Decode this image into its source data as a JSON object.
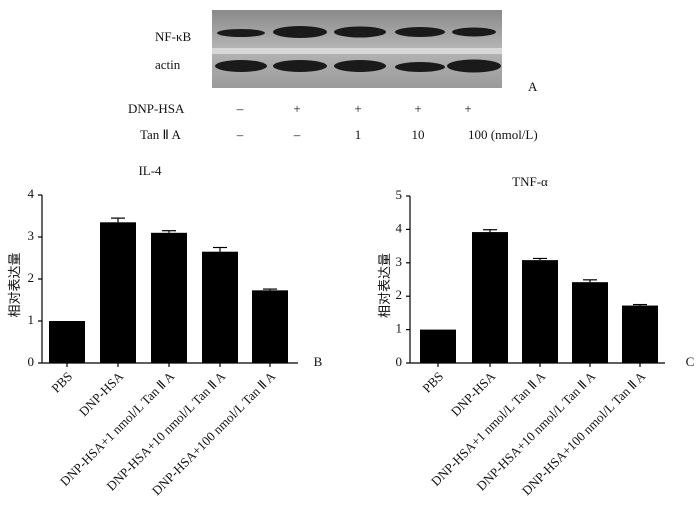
{
  "blot": {
    "row_labels": [
      "NF-κB",
      "actin"
    ],
    "panel_label": "A",
    "conditions": [
      {
        "name": "DNP-HSA",
        "lanes": [
          "–",
          "+",
          "+",
          "+",
          "+"
        ]
      },
      {
        "name": "Tan Ⅱ A",
        "lanes": [
          "–",
          "–",
          "1",
          "10",
          "100 (nmol/L)"
        ]
      }
    ]
  },
  "chart_data": [
    {
      "type": "bar",
      "title": "IL-4",
      "panel_label": "B",
      "y_label": "相对表达量",
      "categories": [
        "PBS",
        "DNP-HSA",
        "DNP-HSA+1 nmol/L Tan Ⅱ A",
        "DNP-HSA+10 nmol/L Tan Ⅱ A",
        "DNP-HSA+100 nmol/L Tan Ⅱ A"
      ],
      "values": [
        1,
        3.35,
        3.1,
        2.65,
        1.73
      ],
      "errors": [
        0,
        0.1,
        0.05,
        0.1,
        0.03
      ],
      "color": "#000000",
      "ylim": [
        0,
        4
      ],
      "yticks": [
        0,
        1,
        2,
        3,
        4
      ]
    },
    {
      "type": "bar",
      "title": "TNF-α",
      "panel_label": "C",
      "y_label": "相对表达量",
      "categories": [
        "PBS",
        "DNP-HSA",
        "DNP-HSA+1 nmol/L Tan Ⅱ A",
        "DNP-HSA+10 nmol/L Tan Ⅱ A",
        "DNP-HSA+100 nmol/L Tan Ⅱ A"
      ],
      "values": [
        1,
        3.92,
        3.08,
        2.42,
        1.72
      ],
      "errors": [
        0,
        0.07,
        0.05,
        0.07,
        0.03
      ],
      "color": "#000000",
      "ylim": [
        0,
        5
      ],
      "yticks": [
        0,
        1,
        2,
        3,
        4,
        5
      ]
    }
  ]
}
